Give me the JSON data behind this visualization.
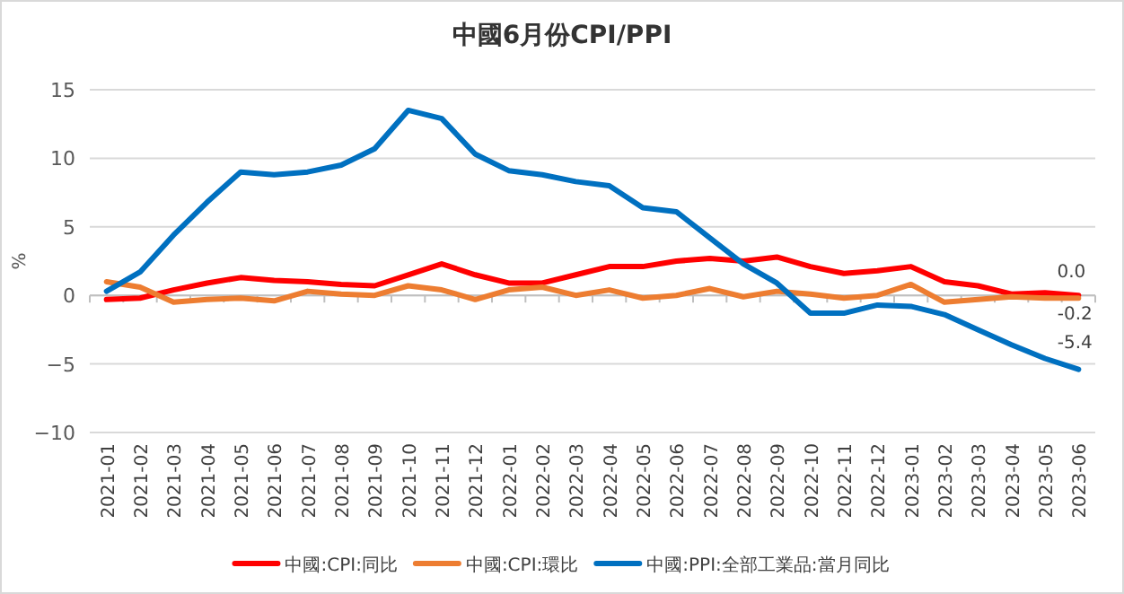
{
  "chart_data": {
    "type": "line",
    "title": "中國6月份CPI/PPI",
    "ylabel": "%",
    "categories": [
      "2021-01",
      "2021-02",
      "2021-03",
      "2021-04",
      "2021-05",
      "2021-06",
      "2021-07",
      "2021-08",
      "2021-09",
      "2021-10",
      "2021-11",
      "2021-12",
      "2022-01",
      "2022-02",
      "2022-03",
      "2022-04",
      "2022-05",
      "2022-06",
      "2022-07",
      "2022-08",
      "2022-09",
      "2022-10",
      "2022-11",
      "2022-12",
      "2023-01",
      "2023-02",
      "2023-03",
      "2023-04",
      "2023-05",
      "2023-06"
    ],
    "series": [
      {
        "name": "中國:CPI:同比",
        "color": "#ff0000",
        "values": [
          -0.3,
          -0.2,
          0.4,
          0.9,
          1.3,
          1.1,
          1.0,
          0.8,
          0.7,
          1.5,
          2.3,
          1.5,
          0.9,
          0.9,
          1.5,
          2.1,
          2.1,
          2.5,
          2.7,
          2.5,
          2.8,
          2.1,
          1.6,
          1.8,
          2.1,
          1.0,
          0.7,
          0.1,
          0.2,
          0.0
        ],
        "value_labels": [
          null,
          null,
          null,
          null,
          null,
          null,
          null,
          null,
          null,
          null,
          null,
          null,
          null,
          null,
          null,
          null,
          null,
          null,
          null,
          null,
          null,
          null,
          null,
          null,
          null,
          null,
          null,
          null,
          null,
          "0.0"
        ]
      },
      {
        "name": "中國:CPI:環比",
        "color": "#ed7d31",
        "values": [
          1.0,
          0.6,
          -0.5,
          -0.3,
          -0.2,
          -0.4,
          0.3,
          0.1,
          0.0,
          0.7,
          0.4,
          -0.3,
          0.4,
          0.6,
          0.0,
          0.4,
          -0.2,
          0.0,
          0.5,
          -0.1,
          0.3,
          0.1,
          -0.2,
          0.0,
          0.8,
          -0.5,
          -0.3,
          -0.1,
          -0.2,
          -0.2
        ],
        "value_labels": [
          null,
          null,
          null,
          null,
          null,
          null,
          null,
          null,
          null,
          null,
          null,
          null,
          null,
          null,
          null,
          null,
          null,
          null,
          null,
          null,
          null,
          null,
          null,
          null,
          null,
          null,
          null,
          null,
          null,
          "-0.2"
        ]
      },
      {
        "name": "中國:PPI:全部工業品:當月同比",
        "color": "#0070c0",
        "values": [
          0.3,
          1.7,
          4.4,
          6.8,
          9.0,
          8.8,
          9.0,
          9.5,
          10.7,
          13.5,
          12.9,
          10.3,
          9.1,
          8.8,
          8.3,
          8.0,
          6.4,
          6.1,
          4.2,
          2.3,
          0.9,
          -1.3,
          -1.3,
          -0.7,
          -0.8,
          -1.4,
          -2.5,
          -3.6,
          -4.6,
          -5.4
        ],
        "value_labels": [
          null,
          null,
          null,
          null,
          null,
          null,
          null,
          null,
          null,
          null,
          null,
          null,
          null,
          null,
          null,
          null,
          null,
          null,
          null,
          null,
          null,
          null,
          null,
          null,
          null,
          null,
          null,
          null,
          null,
          "-5.4"
        ]
      }
    ],
    "ylim": [
      -10,
      15
    ],
    "yticks": [
      -10,
      -5,
      0,
      5,
      10,
      15
    ],
    "grid": "y",
    "legend": "bottom",
    "marker": "none",
    "line_style": "solid"
  }
}
